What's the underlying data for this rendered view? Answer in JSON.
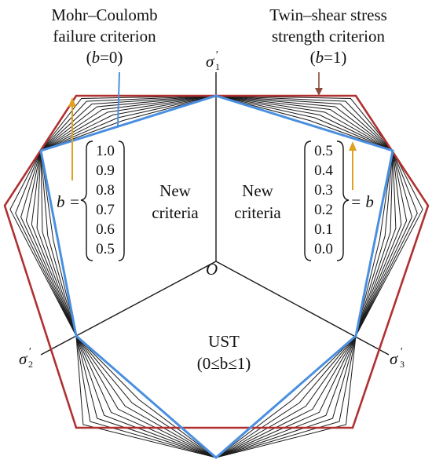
{
  "labels": {
    "mc_line1": "Mohr–Coulomb",
    "mc_line2": "failure criterion",
    "mc_b_open": "(",
    "mc_b_var": "b",
    "mc_b_rest": "=0)",
    "ts_line1": "Twin–shear stress",
    "ts_line2": "strength criterion",
    "ts_b_open": "(",
    "ts_b_var": "b",
    "ts_b_rest": "=1)",
    "sigma": "σ",
    "prime": "′",
    "sub1": "1",
    "sub2": "2",
    "sub3": "3",
    "origin": "O",
    "new1": "New",
    "crit1": "criteria",
    "new2": "New",
    "crit2": "criteria",
    "ust": "UST",
    "ust_range": "(0≤b≤1)",
    "b_left": "b =",
    "b_right": "= b"
  },
  "left_b_values": [
    "1.0",
    "0.9",
    "0.8",
    "0.7",
    "0.6",
    "0.5"
  ],
  "right_b_values": [
    "0.5",
    "0.4",
    "0.3",
    "0.2",
    "0.1",
    "0.0"
  ],
  "colors": {
    "mohr_coulomb": "#4a8fe0",
    "twin_shear": "#b03030",
    "family_lines": "#1a1a1a",
    "axes": "#1a1a1a",
    "arrow_orange": "#e0a020",
    "arrow_brown": "#8b4a3a"
  }
}
